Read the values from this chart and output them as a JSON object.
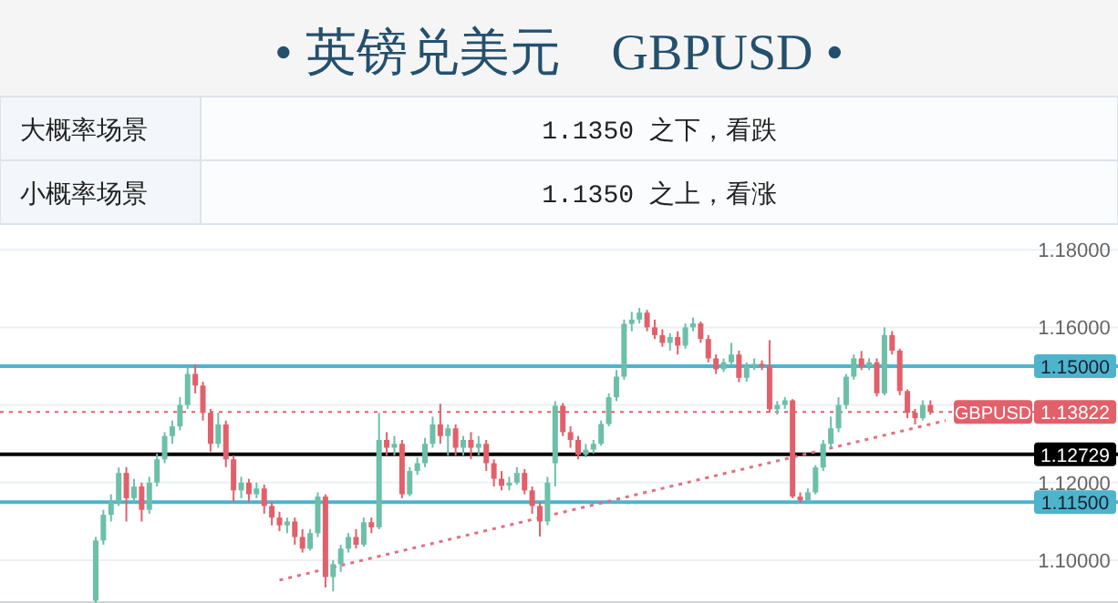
{
  "chart_data": [
    {
      "type": "other",
      "title": "• 英镑兑美元　GBPUSD •",
      "annotations": [
        "大概率场景",
        "1.1350 之下，看跌",
        "小概率场景",
        "1.1350 之上，看涨"
      ]
    },
    {
      "type": "candlestick",
      "categories": [
        null,
        null,
        null,
        null,
        null,
        null,
        null,
        null,
        null,
        null,
        null,
        null,
        null,
        null,
        null,
        null,
        null,
        null,
        null,
        null,
        null,
        null,
        null,
        null,
        null,
        null,
        null,
        null,
        null,
        null,
        null,
        null,
        null,
        null,
        null,
        null,
        null,
        null,
        null,
        null,
        null,
        null,
        null,
        null,
        null,
        null,
        null,
        null,
        null,
        null,
        null,
        null,
        null,
        null,
        null,
        null,
        null,
        null,
        null,
        null,
        null,
        null,
        null,
        null,
        null,
        null,
        null,
        null,
        null,
        null,
        null,
        null,
        null,
        null,
        null,
        null,
        null,
        null,
        null,
        null,
        null,
        null,
        null,
        null,
        null,
        null,
        null,
        null,
        null,
        null,
        null,
        null,
        null,
        null,
        null,
        null,
        null,
        null,
        null,
        null,
        null,
        null,
        null,
        null,
        null,
        null,
        null,
        null,
        null,
        null,
        null,
        null,
        null,
        null,
        null,
        null,
        null,
        null,
        null,
        null,
        null,
        null,
        null,
        null,
        null,
        null,
        null,
        null,
        null,
        null,
        null,
        null,
        null,
        null,
        null,
        null,
        null,
        null,
        null,
        null,
        null,
        null,
        null,
        null,
        null,
        null
      ],
      "ohlc": [
        null,
        null,
        null,
        null,
        null,
        null,
        null,
        null,
        null,
        null,
        null,
        null,
        [
          1.0896,
          1.106,
          1.089,
          1.1051
        ],
        [
          1.1051,
          1.113,
          1.104,
          1.1117
        ],
        [
          1.1117,
          1.117,
          1.11,
          1.115
        ],
        [
          1.115,
          1.1239,
          1.114,
          1.1225
        ],
        [
          1.1225,
          1.124,
          1.11,
          1.116
        ],
        [
          1.116,
          1.121,
          1.115,
          1.119
        ],
        [
          1.119,
          1.12,
          1.11,
          1.113
        ],
        [
          1.113,
          1.1215,
          1.112,
          1.12
        ],
        [
          1.12,
          1.1275,
          1.119,
          1.126
        ],
        [
          1.126,
          1.133,
          1.125,
          1.132
        ],
        [
          1.132,
          1.136,
          1.13,
          1.1345
        ],
        [
          1.1345,
          1.142,
          1.1335,
          1.14
        ],
        [
          1.14,
          1.1497,
          1.139,
          1.148
        ],
        [
          1.148,
          1.1505,
          1.143,
          1.145
        ],
        [
          1.145,
          1.146,
          1.136,
          1.138
        ],
        [
          1.138,
          1.139,
          1.128,
          1.13
        ],
        [
          1.13,
          1.138,
          1.129,
          1.135
        ],
        [
          1.135,
          1.136,
          1.124,
          1.126
        ],
        [
          1.126,
          1.127,
          1.115,
          1.118
        ],
        [
          1.118,
          1.1215,
          1.116,
          1.12
        ],
        [
          1.12,
          1.121,
          1.115,
          1.117
        ],
        [
          1.117,
          1.12,
          1.116,
          1.1185
        ],
        [
          1.1185,
          1.1195,
          1.112,
          1.114
        ],
        [
          1.114,
          1.115,
          1.109,
          1.111
        ],
        [
          1.111,
          1.1125,
          1.1075,
          1.109
        ],
        [
          1.109,
          1.111,
          1.107,
          1.11
        ],
        [
          1.11,
          1.111,
          1.104,
          1.106
        ],
        [
          1.106,
          1.108,
          1.102,
          1.103
        ],
        [
          1.103,
          1.108,
          1.1025,
          1.107
        ],
        [
          1.107,
          1.1175,
          1.106,
          1.1164
        ],
        [
          1.1164,
          1.117,
          1.093,
          1.0957
        ],
        [
          1.0957,
          1.1,
          1.092,
          1.099
        ],
        [
          1.099,
          1.104,
          1.097,
          1.103
        ],
        [
          1.103,
          1.107,
          1.102,
          1.106
        ],
        [
          1.106,
          1.108,
          1.103,
          1.104
        ],
        [
          1.104,
          1.111,
          1.1035,
          1.1098
        ],
        [
          1.1098,
          1.111,
          1.107,
          1.1085
        ],
        [
          1.1085,
          1.138,
          1.108,
          1.131
        ],
        [
          1.131,
          1.133,
          1.127,
          1.129
        ],
        [
          1.129,
          1.132,
          1.127,
          1.13
        ],
        [
          1.13,
          1.131,
          1.116,
          1.117
        ],
        [
          1.117,
          1.124,
          1.1165,
          1.123
        ],
        [
          1.123,
          1.1265,
          1.122,
          1.125
        ],
        [
          1.125,
          1.1315,
          1.124,
          1.13
        ],
        [
          1.13,
          1.137,
          1.129,
          1.135
        ],
        [
          1.135,
          1.1403,
          1.13,
          1.132
        ],
        [
          1.132,
          1.135,
          1.127,
          1.134
        ],
        [
          1.134,
          1.135,
          1.127,
          1.129
        ],
        [
          1.129,
          1.132,
          1.127,
          1.131
        ],
        [
          1.131,
          1.133,
          1.126,
          1.129
        ],
        [
          1.129,
          1.132,
          1.127,
          1.13
        ],
        [
          1.13,
          1.131,
          1.123,
          1.125
        ],
        [
          1.125,
          1.126,
          1.119,
          1.121
        ],
        [
          1.121,
          1.123,
          1.118,
          1.1192
        ],
        [
          1.1192,
          1.1215,
          1.118,
          1.12
        ],
        [
          1.12,
          1.124,
          1.1195,
          1.1225
        ],
        [
          1.1225,
          1.1235,
          1.117,
          1.118
        ],
        [
          1.118,
          1.119,
          1.112,
          1.114
        ],
        [
          1.114,
          1.115,
          1.1061,
          1.11
        ],
        [
          1.11,
          1.1215,
          1.109,
          1.12
        ],
        [
          1.125,
          1.141,
          1.119,
          1.1398
        ],
        [
          1.1398,
          1.1405,
          1.132,
          1.133
        ],
        [
          1.133,
          1.1345,
          1.129,
          1.131
        ],
        [
          1.131,
          1.132,
          1.126,
          1.1272
        ],
        [
          1.1272,
          1.13,
          1.1265,
          1.1285
        ],
        [
          1.1285,
          1.131,
          1.1275,
          1.13
        ],
        [
          1.13,
          1.136,
          1.1295,
          1.1351
        ],
        [
          1.1351,
          1.143,
          1.1345,
          1.142
        ],
        [
          1.142,
          1.149,
          1.141,
          1.1473
        ],
        [
          1.1473,
          1.162,
          1.1465,
          1.1609
        ],
        [
          1.1609,
          1.164,
          1.159,
          1.162
        ],
        [
          1.162,
          1.165,
          1.161,
          1.1638
        ],
        [
          1.1638,
          1.1645,
          1.159,
          1.16
        ],
        [
          1.16,
          1.162,
          1.157,
          1.158
        ],
        [
          1.158,
          1.1595,
          1.155,
          1.156
        ],
        [
          1.156,
          1.1585,
          1.154,
          1.1575
        ],
        [
          1.1575,
          1.159,
          1.153,
          1.1553
        ],
        [
          1.1553,
          1.161,
          1.1545,
          1.16
        ],
        [
          1.16,
          1.1625,
          1.159,
          1.161
        ],
        [
          1.161,
          1.1615,
          1.156,
          1.157
        ],
        [
          1.157,
          1.158,
          1.151,
          1.152
        ],
        [
          1.152,
          1.153,
          1.148,
          1.1492
        ],
        [
          1.1492,
          1.152,
          1.1485,
          1.151
        ],
        [
          1.151,
          1.156,
          1.15,
          1.153
        ],
        [
          1.153,
          1.154,
          1.1459,
          1.147
        ],
        [
          1.147,
          1.151,
          1.146,
          1.15
        ],
        [
          1.15,
          1.152,
          1.149,
          1.1506
        ],
        [
          1.1506,
          1.1515,
          1.149,
          1.15
        ],
        [
          1.15,
          1.1567,
          1.138,
          1.1389
        ],
        [
          1.1389,
          1.141,
          1.1375,
          1.14
        ],
        [
          1.14,
          1.142,
          1.139,
          1.1412
        ],
        [
          1.1412,
          1.1415,
          1.116,
          1.1164
        ],
        [
          1.1164,
          1.1175,
          1.1148,
          1.1155
        ],
        [
          1.1155,
          1.1185,
          1.1148,
          1.1175
        ],
        [
          1.1175,
          1.1245,
          1.117,
          1.1239
        ],
        [
          1.1239,
          1.131,
          1.123,
          1.13
        ],
        [
          1.13,
          1.137,
          1.129,
          1.134
        ],
        [
          1.134,
          1.142,
          1.133,
          1.14
        ],
        [
          1.14,
          1.148,
          1.139,
          1.1473
        ],
        [
          1.1473,
          1.153,
          1.1465,
          1.152
        ],
        [
          1.152,
          1.1539,
          1.149,
          1.15
        ],
        [
          1.15,
          1.152,
          1.149,
          1.151
        ],
        [
          1.151,
          1.152,
          1.1422,
          1.143
        ],
        [
          1.143,
          1.16,
          1.1425,
          1.158
        ],
        [
          1.158,
          1.159,
          1.153,
          1.154
        ],
        [
          1.154,
          1.1545,
          1.1425,
          1.1436
        ],
        [
          1.1436,
          1.144,
          1.1366,
          1.138
        ],
        [
          1.138,
          1.139,
          1.135,
          1.1366
        ],
        [
          1.1366,
          1.1412,
          1.136,
          1.14
        ],
        [
          1.14,
          1.1412,
          1.1375,
          1.1382
        ],
        null,
        null,
        null,
        null,
        null,
        null,
        null,
        null,
        null,
        null,
        null,
        null,
        null,
        null,
        null,
        null,
        null,
        null,
        null,
        null,
        null,
        null,
        null,
        null
      ],
      "series": [
        {
          "type": "line",
          "values": [
            null,
            null,
            null,
            null,
            null,
            null,
            null,
            null,
            null,
            null,
            null,
            null,
            null,
            null,
            null,
            null,
            null,
            null,
            null,
            null,
            null,
            null,
            null,
            null,
            null,
            null,
            null,
            null,
            null,
            null,
            null,
            null,
            null,
            null,
            null,
            null,
            1.0949,
            null,
            null,
            null,
            null,
            null,
            null,
            null,
            null,
            null,
            null,
            null,
            null,
            null,
            null,
            null,
            null,
            null,
            null,
            null,
            null,
            null,
            null,
            null,
            null,
            null,
            null,
            null,
            null,
            null,
            null,
            null,
            null,
            null,
            null,
            null,
            null,
            null,
            null,
            null,
            null,
            null,
            null,
            null,
            null,
            null,
            null,
            null,
            null,
            null,
            null,
            null,
            null,
            null,
            null,
            null,
            null,
            null,
            null,
            null,
            null,
            null,
            null,
            null,
            null,
            null,
            null,
            null,
            null,
            null,
            null,
            null,
            null,
            null,
            null,
            null,
            null,
            null,
            null,
            null,
            null,
            null,
            null,
            null,
            null,
            null,
            null,
            1.136,
            null,
            null,
            null,
            null,
            null,
            null,
            null,
            null,
            null,
            null,
            null,
            null,
            null,
            null,
            null,
            null,
            null,
            null,
            null,
            null,
            null,
            null
          ],
          "color": "#e07080",
          "line_style": "dotted"
        }
      ],
      "annotations": [
        {
          "text": "GBPUSD",
          "y": 1.13822
        }
      ],
      "ylim": [
        1.089,
        1.1805
      ],
      "yticks": [
        {
          "value": 1.1,
          "label": "1.10000"
        },
        {
          "value": 1.12,
          "label": "1.12000"
        },
        {
          "value": 1.14,
          "label": null
        },
        {
          "value": 1.16,
          "label": "1.16000"
        },
        {
          "value": 1.18,
          "label": "1.18000"
        }
      ],
      "grid": "y",
      "ref_lines": [
        {
          "axis": "y",
          "value": 1.15,
          "label": "1.15000",
          "color": "#4fb3cc",
          "line_style": "solid"
        },
        {
          "axis": "y",
          "value": 1.12729,
          "label": "1.12729",
          "color": "#000000",
          "line_style": "solid"
        },
        {
          "axis": "y",
          "value": 1.115,
          "label": "1.11500",
          "color": "#4fb3cc",
          "line_style": "solid"
        },
        {
          "axis": "y",
          "value": 1.13822,
          "label": "1.13822",
          "color": "#e2606a",
          "line_style": "dotted"
        }
      ]
    }
  ]
}
